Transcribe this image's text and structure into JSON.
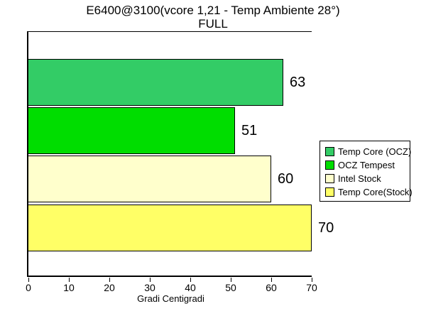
{
  "chart_data": {
    "type": "bar",
    "orientation": "horizontal",
    "title": "E6400@3100(vcore 1,21 - Temp Ambiente 28°)",
    "subtitle": "FULL",
    "xlabel": "Gradi Centigradi",
    "xlim": [
      0,
      70
    ],
    "xticks": [
      0,
      10,
      20,
      30,
      40,
      50,
      60,
      70
    ],
    "grid": false,
    "legend_position": "right",
    "series": [
      {
        "name": "Temp Core (OCZ)",
        "value": 63,
        "color": "#33CC66"
      },
      {
        "name": "OCZ Tempest",
        "value": 51,
        "color": "#00DD00"
      },
      {
        "name": "Intel Stock",
        "value": 60,
        "color": "#FFFFCC"
      },
      {
        "name": "Temp Core(Stock)",
        "value": 70,
        "color": "#FFFF66"
      }
    ]
  }
}
